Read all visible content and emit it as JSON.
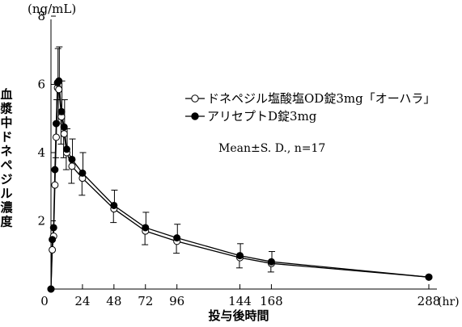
{
  "chart_data": {
    "type": "line",
    "y_unit": "(ng/mL)",
    "x_unit": "(hr)",
    "ylabel": "血漿中ドネペジル濃度",
    "xlabel": "投与後時間",
    "xlim": [
      0,
      288
    ],
    "ylim": [
      0,
      8
    ],
    "xticks": [
      0,
      24,
      48,
      72,
      96,
      144,
      168,
      288
    ],
    "yticks": [
      2,
      4,
      6,
      8
    ],
    "annotation": "Mean±S. D., n=17",
    "legend_position": "upper-right",
    "series": [
      {
        "name": "ドネペジル塩酸塩OD錠3mg「オーハラ」",
        "marker": "open-circle",
        "color": "#000000",
        "points": [
          {
            "x": 0,
            "y": 0,
            "sd": 0
          },
          {
            "x": 1,
            "y": 1.15,
            "sd": 0
          },
          {
            "x": 2,
            "y": 1.55,
            "sd": 0
          },
          {
            "x": 3,
            "y": 3.05,
            "sd": 0
          },
          {
            "x": 4,
            "y": 4.45,
            "sd": 0.6
          },
          {
            "x": 5,
            "y": 5.9,
            "sd": 1.0
          },
          {
            "x": 6,
            "y": 5.85,
            "sd": 1.0
          },
          {
            "x": 8,
            "y": 5.05,
            "sd": 0.8
          },
          {
            "x": 10,
            "y": 4.55,
            "sd": 0.7
          },
          {
            "x": 12,
            "y": 4.0,
            "sd": 0.5
          },
          {
            "x": 16,
            "y": 3.6,
            "sd": 0.5
          },
          {
            "x": 24,
            "y": 3.25,
            "sd": 0.5
          },
          {
            "x": 48,
            "y": 2.35,
            "sd": 0.4
          },
          {
            "x": 72,
            "y": 1.7,
            "sd": 0.4
          },
          {
            "x": 96,
            "y": 1.4,
            "sd": 0.35
          },
          {
            "x": 144,
            "y": 0.92,
            "sd": 0.3
          },
          {
            "x": 168,
            "y": 0.75,
            "sd": 0.25
          },
          {
            "x": 288,
            "y": 0.35,
            "sd": 0
          }
        ]
      },
      {
        "name": "アリセプトD錠3mg",
        "marker": "filled-circle",
        "color": "#000000",
        "points": [
          {
            "x": 0,
            "y": 0,
            "sd": 0
          },
          {
            "x": 1,
            "y": 1.45,
            "sd": 0
          },
          {
            "x": 2,
            "y": 1.8,
            "sd": 0
          },
          {
            "x": 3,
            "y": 3.5,
            "sd": 0
          },
          {
            "x": 4,
            "y": 4.85,
            "sd": 0.7
          },
          {
            "x": 5,
            "y": 6.05,
            "sd": 1.0
          },
          {
            "x": 6,
            "y": 6.1,
            "sd": 1.0
          },
          {
            "x": 8,
            "y": 5.2,
            "sd": 0.9
          },
          {
            "x": 10,
            "y": 4.75,
            "sd": 0.8
          },
          {
            "x": 12,
            "y": 4.1,
            "sd": 0.6
          },
          {
            "x": 16,
            "y": 3.8,
            "sd": 0.6
          },
          {
            "x": 24,
            "y": 3.4,
            "sd": 0.6
          },
          {
            "x": 48,
            "y": 2.45,
            "sd": 0.45
          },
          {
            "x": 72,
            "y": 1.8,
            "sd": 0.45
          },
          {
            "x": 96,
            "y": 1.5,
            "sd": 0.4
          },
          {
            "x": 144,
            "y": 0.98,
            "sd": 0.35
          },
          {
            "x": 168,
            "y": 0.8,
            "sd": 0.3
          },
          {
            "x": 288,
            "y": 0.35,
            "sd": 0
          }
        ]
      }
    ]
  }
}
